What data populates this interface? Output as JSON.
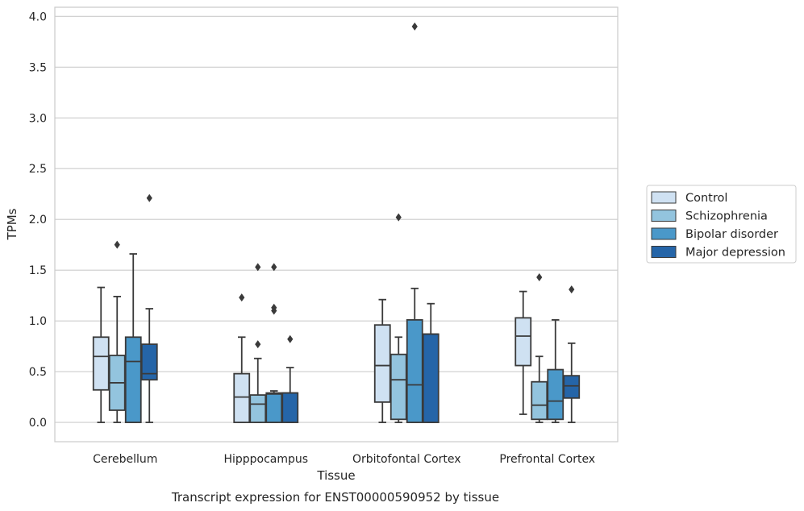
{
  "chart_data": {
    "type": "box",
    "caption": "Transcript expression for ENST00000590952 by tissue",
    "xlabel": "Tissue",
    "ylabel": "TPMs",
    "ylim": [
      -0.19,
      4.09
    ],
    "yticks": [
      "0.0",
      "0.5",
      "1.0",
      "1.5",
      "2.0",
      "2.5",
      "3.0",
      "3.5",
      "4.0"
    ],
    "grid": true,
    "legend_position": "right",
    "categories": [
      "Cerebellum",
      "Hipppocampus",
      "Orbitofontal Cortex",
      "Prefrontal Cortex"
    ],
    "series": [
      {
        "name": "Control",
        "color": "#cfe1f2",
        "boxes": [
          {
            "min": 0.0,
            "q1": 0.32,
            "median": 0.65,
            "q3": 0.84,
            "max": 1.33,
            "outliers": []
          },
          {
            "min": 0.0,
            "q1": 0.0,
            "median": 0.25,
            "q3": 0.48,
            "max": 0.84,
            "outliers": [
              1.23
            ]
          },
          {
            "min": 0.0,
            "q1": 0.2,
            "median": 0.56,
            "q3": 0.96,
            "max": 1.21,
            "outliers": []
          },
          {
            "min": 0.08,
            "q1": 0.56,
            "median": 0.85,
            "q3": 1.03,
            "max": 1.29,
            "outliers": []
          }
        ]
      },
      {
        "name": "Schizophrenia",
        "color": "#93c4de",
        "boxes": [
          {
            "min": 0.0,
            "q1": 0.12,
            "median": 0.39,
            "q3": 0.66,
            "max": 1.24,
            "outliers": [
              1.75
            ]
          },
          {
            "min": 0.0,
            "q1": 0.0,
            "median": 0.18,
            "q3": 0.27,
            "max": 0.63,
            "outliers": [
              0.77,
              1.53
            ]
          },
          {
            "min": 0.0,
            "q1": 0.03,
            "median": 0.42,
            "q3": 0.67,
            "max": 0.84,
            "outliers": [
              2.02
            ]
          },
          {
            "min": 0.0,
            "q1": 0.03,
            "median": 0.17,
            "q3": 0.4,
            "max": 0.65,
            "outliers": [
              1.43
            ]
          }
        ]
      },
      {
        "name": "Bipolar disorder",
        "color": "#4a98c9",
        "boxes": [
          {
            "min": 0.0,
            "q1": 0.0,
            "median": 0.6,
            "q3": 0.84,
            "max": 1.66,
            "outliers": []
          },
          {
            "min": 0.0,
            "q1": 0.0,
            "median": 0.28,
            "q3": 0.29,
            "max": 0.31,
            "outliers": [
              1.1,
              1.13,
              1.53
            ]
          },
          {
            "min": 0.0,
            "q1": 0.0,
            "median": 0.37,
            "q3": 1.01,
            "max": 1.32,
            "outliers": [
              3.9
            ]
          },
          {
            "min": 0.0,
            "q1": 0.03,
            "median": 0.21,
            "q3": 0.52,
            "max": 1.01,
            "outliers": []
          }
        ]
      },
      {
        "name": "Major depression",
        "color": "#2565a8",
        "boxes": [
          {
            "min": 0.0,
            "q1": 0.42,
            "median": 0.48,
            "q3": 0.77,
            "max": 1.12,
            "outliers": [
              2.21
            ]
          },
          {
            "min": 0.0,
            "q1": 0.0,
            "median": 0.29,
            "q3": 0.29,
            "max": 0.54,
            "outliers": [
              0.82
            ]
          },
          {
            "min": 0.0,
            "q1": 0.0,
            "median": 0.87,
            "q3": 0.87,
            "max": 1.17,
            "outliers": []
          },
          {
            "min": 0.0,
            "q1": 0.24,
            "median": 0.36,
            "q3": 0.46,
            "max": 0.78,
            "outliers": [
              1.31
            ]
          }
        ]
      }
    ]
  }
}
